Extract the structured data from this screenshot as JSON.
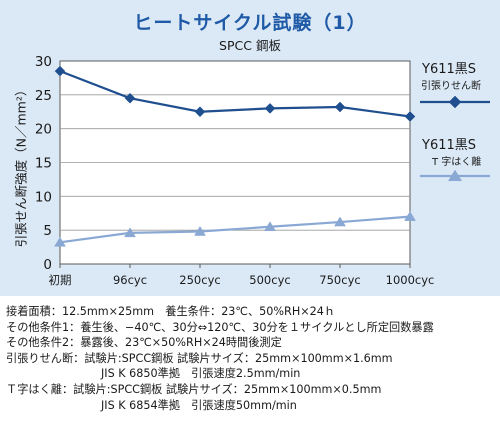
{
  "chart_data": {
    "type": "line",
    "title": "ヒートサイクル試験（1）",
    "subtitle": "SPCC 鋼板",
    "ylabel": "引張せん断強度（N／mm²）",
    "xlabel": "",
    "categories": [
      "初期",
      "96cyc",
      "250cyc",
      "500cyc",
      "750cyc",
      "1000cyc"
    ],
    "y_ticks": [
      "0",
      "5",
      "10",
      "15",
      "20",
      "25",
      "30"
    ],
    "ylim": [
      0,
      30
    ],
    "grid": true,
    "legend_position": "right",
    "series": [
      {
        "name": "Y611黒S",
        "subname": "引張りせん断",
        "marker": "diamond",
        "color": "#1f4f8f",
        "values": [
          28.5,
          24.5,
          22.5,
          23.0,
          23.2,
          21.8
        ]
      },
      {
        "name": "Y611黒S",
        "subname": "T 字はく離",
        "marker": "triangle",
        "color": "#8aa8d4",
        "values": [
          3.2,
          4.6,
          4.8,
          5.5,
          6.2,
          7.0
        ]
      }
    ]
  },
  "notes": [
    {
      "label": "接着面積：",
      "text": "12.5mm×25mm　養生条件：23℃、50%RH×24ｈ"
    },
    {
      "label": "その他条件1：",
      "text": "養生後、−40℃、30分⇔120℃、30分を１サイクルとし所定回数暴露"
    },
    {
      "label": "その他条件2：",
      "text": "暴露後、23℃×50%RH×24時間後測定"
    },
    {
      "label": "引張りせん断：",
      "text": "試験片:SPCC鋼板  試験片サイズ：25mm×100mm×1.6mm"
    },
    {
      "label": "",
      "text": "JIS K 6850準拠　引張速度2.5mm/min"
    },
    {
      "label": "Ｔ字はく離：",
      "text": "試験片:SPCC鋼板  試験片サイズ：25mm×100mm×0.5mm"
    },
    {
      "label": "",
      "text": "JIS K 6854準拠　引張速度50mm/min"
    }
  ]
}
